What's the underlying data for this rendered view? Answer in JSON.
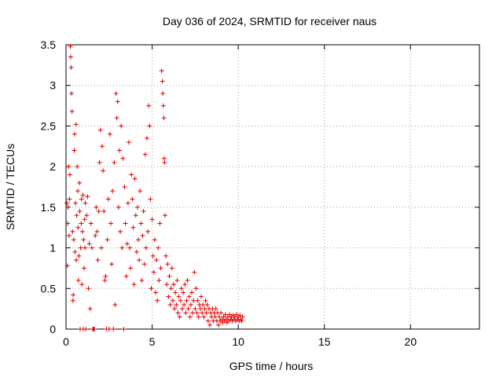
{
  "chart_data": {
    "type": "scatter",
    "title": "Day 036 of 2024, SRMTID for receiver naus",
    "xlabel": "GPS time / hours",
    "ylabel": "SRMTID / TECUs",
    "xlim": [
      0,
      24
    ],
    "ylim": [
      0,
      3.5
    ],
    "grid": true,
    "marker": "+",
    "colors": {
      "series": "#e00000",
      "axis": "#000000",
      "grid": "#a0a0a0"
    },
    "x_ticks": [
      0,
      5,
      10,
      15,
      20
    ],
    "x_tick_labels": [
      "0",
      "5",
      "10",
      "15",
      "20"
    ],
    "y_ticks": [
      0,
      0.5,
      1,
      1.5,
      2,
      2.5,
      3,
      3.5
    ],
    "y_tick_labels": [
      "0",
      "0.5",
      "1",
      "1.5",
      "2",
      "2.5",
      "3",
      "3.5"
    ],
    "series": [
      {
        "name": "SRMTID",
        "points": [
          [
            0.05,
            1.55
          ],
          [
            0.08,
            0.78
          ],
          [
            0.1,
            1.3
          ],
          [
            0.12,
            1.5
          ],
          [
            0.15,
            2.0
          ],
          [
            0.18,
            1.15
          ],
          [
            0.2,
            1.6
          ],
          [
            0.22,
            1.9
          ],
          [
            0.25,
            3.48
          ],
          [
            0.27,
            3.35
          ],
          [
            0.3,
            3.22
          ],
          [
            0.32,
            2.9
          ],
          [
            0.35,
            2.68
          ],
          [
            0.38,
            1.2
          ],
          [
            0.4,
            0.35
          ],
          [
            0.42,
            0.42
          ],
          [
            0.45,
            1.1
          ],
          [
            0.48,
            2.2
          ],
          [
            0.5,
            2.4
          ],
          [
            0.52,
            0.95
          ],
          [
            0.55,
            1.55
          ],
          [
            0.58,
            2.52
          ],
          [
            0.6,
            0.85
          ],
          [
            0.62,
            1.4
          ],
          [
            0.65,
            2.0
          ],
          [
            0.68,
            1.7
          ],
          [
            0.7,
            1.25
          ],
          [
            0.72,
            0.6
          ],
          [
            0.75,
            0.9
          ],
          [
            0.78,
            1.8
          ],
          [
            0.8,
            1.45
          ],
          [
            0.82,
            0.0
          ],
          [
            0.85,
            1.0
          ],
          [
            0.88,
            1.3
          ],
          [
            0.9,
            1.6
          ],
          [
            0.92,
            0.55
          ],
          [
            0.95,
            1.2
          ],
          [
            0.98,
            1.65
          ],
          [
            1.0,
            0.0
          ],
          [
            1.02,
            1.1
          ],
          [
            1.05,
            0.75
          ],
          [
            1.08,
            1.35
          ],
          [
            1.1,
            1.0
          ],
          [
            1.12,
            1.55
          ],
          [
            1.15,
            0.0
          ],
          [
            1.2,
            1.4
          ],
          [
            1.25,
            1.63
          ],
          [
            1.3,
            0.5
          ],
          [
            1.35,
            1.05
          ],
          [
            1.4,
            0.25
          ],
          [
            1.45,
            1.3
          ],
          [
            1.5,
            1.0
          ],
          [
            1.55,
            0.0
          ],
          [
            1.6,
            0.0
          ],
          [
            1.65,
            0.0
          ],
          [
            1.7,
            1.15
          ],
          [
            1.75,
            1.5
          ],
          [
            1.8,
            1.2
          ],
          [
            1.85,
            0.85
          ],
          [
            1.9,
            1.45
          ],
          [
            1.95,
            2.05
          ],
          [
            2.0,
            2.45
          ],
          [
            2.05,
            1.0
          ],
          [
            2.1,
            2.25
          ],
          [
            2.15,
            1.95
          ],
          [
            2.2,
            1.45
          ],
          [
            2.25,
            0.6
          ],
          [
            2.3,
            0.65
          ],
          [
            2.35,
            0.0
          ],
          [
            2.4,
            1.1
          ],
          [
            2.45,
            1.6
          ],
          [
            2.5,
            0.0
          ],
          [
            2.55,
            2.4
          ],
          [
            2.6,
            1.3
          ],
          [
            2.65,
            0.8
          ],
          [
            2.7,
            1.7
          ],
          [
            2.75,
            0.0
          ],
          [
            2.8,
            2.05
          ],
          [
            2.85,
            0.3
          ],
          [
            2.9,
            2.9
          ],
          [
            2.95,
            2.6
          ],
          [
            3.0,
            2.8
          ],
          [
            3.05,
            1.5
          ],
          [
            3.1,
            2.2
          ],
          [
            3.15,
            1.2
          ],
          [
            3.2,
            2.5
          ],
          [
            3.25,
            1.0
          ],
          [
            3.3,
            2.1
          ],
          [
            3.35,
            0.0
          ],
          [
            3.4,
            1.75
          ],
          [
            3.45,
            1.3
          ],
          [
            3.5,
            0.65
          ],
          [
            3.55,
            1.05
          ],
          [
            3.6,
            1.55
          ],
          [
            3.65,
            2.3
          ],
          [
            3.7,
            1.0
          ],
          [
            3.75,
            0.75
          ],
          [
            3.8,
            1.9
          ],
          [
            3.85,
            1.6
          ],
          [
            3.9,
            1.25
          ],
          [
            3.95,
            0.55
          ],
          [
            4.0,
            1.85
          ],
          [
            4.05,
            1.4
          ],
          [
            4.1,
            0.95
          ],
          [
            4.15,
            1.5
          ],
          [
            4.2,
            1.1
          ],
          [
            4.25,
            0.85
          ],
          [
            4.3,
            1.7
          ],
          [
            4.35,
            1.3
          ],
          [
            4.4,
            0.6
          ],
          [
            4.45,
            1.15
          ],
          [
            4.5,
            1.45
          ],
          [
            4.55,
            0.8
          ],
          [
            4.6,
            2.15
          ],
          [
            4.65,
            1.0
          ],
          [
            4.7,
            2.35
          ],
          [
            4.75,
            1.2
          ],
          [
            4.8,
            2.75
          ],
          [
            4.85,
            2.5
          ],
          [
            4.9,
            1.6
          ],
          [
            4.95,
            0.5
          ],
          [
            5.0,
            1.35
          ],
          [
            5.05,
            0.9
          ],
          [
            5.1,
            0.7
          ],
          [
            5.15,
            1.1
          ],
          [
            5.2,
            0.45
          ],
          [
            5.25,
            0.85
          ],
          [
            5.3,
            0.35
          ],
          [
            5.35,
            1.0
          ],
          [
            5.4,
            0.6
          ],
          [
            5.45,
            1.3
          ],
          [
            5.5,
            0.75
          ],
          [
            5.55,
            3.18
          ],
          [
            5.6,
            3.05
          ],
          [
            5.62,
            2.9
          ],
          [
            5.65,
            2.75
          ],
          [
            5.68,
            2.6
          ],
          [
            5.7,
            2.1
          ],
          [
            5.72,
            2.05
          ],
          [
            5.75,
            1.4
          ],
          [
            5.8,
            0.9
          ],
          [
            5.85,
            0.55
          ],
          [
            5.9,
            0.8
          ],
          [
            5.95,
            0.4
          ],
          [
            6.0,
            0.65
          ],
          [
            6.05,
            0.3
          ],
          [
            6.1,
            0.5
          ],
          [
            6.15,
            0.75
          ],
          [
            6.2,
            0.35
          ],
          [
            6.25,
            0.55
          ],
          [
            6.3,
            0.25
          ],
          [
            6.35,
            0.45
          ],
          [
            6.4,
            0.3
          ],
          [
            6.45,
            0.6
          ],
          [
            6.5,
            0.2
          ],
          [
            6.55,
            0.4
          ],
          [
            6.6,
            0.15
          ],
          [
            6.65,
            0.35
          ],
          [
            6.7,
            0.5
          ],
          [
            6.75,
            0.25
          ],
          [
            6.8,
            0.45
          ],
          [
            6.85,
            0.3
          ],
          [
            6.9,
            0.55
          ],
          [
            6.95,
            0.2
          ],
          [
            7.0,
            0.35
          ],
          [
            7.05,
            0.6
          ],
          [
            7.1,
            0.25
          ],
          [
            7.15,
            0.4
          ],
          [
            7.2,
            0.15
          ],
          [
            7.25,
            0.3
          ],
          [
            7.3,
            0.45
          ],
          [
            7.35,
            0.2
          ],
          [
            7.4,
            0.35
          ],
          [
            7.45,
            0.7
          ],
          [
            7.5,
            0.25
          ],
          [
            7.55,
            0.5
          ],
          [
            7.6,
            0.2
          ],
          [
            7.65,
            0.35
          ],
          [
            7.7,
            0.15
          ],
          [
            7.75,
            0.3
          ],
          [
            7.8,
            0.25
          ],
          [
            7.85,
            0.4
          ],
          [
            7.9,
            0.2
          ],
          [
            7.95,
            0.3
          ],
          [
            8.0,
            0.15
          ],
          [
            8.05,
            0.25
          ],
          [
            8.1,
            0.35
          ],
          [
            8.15,
            0.2
          ],
          [
            8.2,
            0.3
          ],
          [
            8.25,
            0.1
          ],
          [
            8.3,
            0.25
          ],
          [
            8.35,
            0.05
          ],
          [
            8.4,
            0.2
          ],
          [
            8.45,
            0.15
          ],
          [
            8.5,
            0.25
          ],
          [
            8.55,
            0.1
          ],
          [
            8.6,
            0.2
          ],
          [
            8.65,
            0.15
          ],
          [
            8.7,
            0.25
          ],
          [
            8.75,
            0.1
          ],
          [
            8.8,
            0.2
          ],
          [
            8.85,
            0.05
          ],
          [
            8.9,
            0.15
          ],
          [
            8.95,
            0.1
          ],
          [
            9.0,
            0.2
          ],
          [
            9.05,
            0.12
          ],
          [
            9.1,
            0.08
          ],
          [
            9.15,
            0.15
          ],
          [
            9.2,
            0.1
          ],
          [
            9.25,
            0.18
          ],
          [
            9.3,
            0.12
          ],
          [
            9.35,
            0.08
          ],
          [
            9.4,
            0.15
          ],
          [
            9.45,
            0.1
          ],
          [
            9.5,
            0.18
          ],
          [
            9.55,
            0.12
          ],
          [
            9.6,
            0.15
          ],
          [
            9.65,
            0.1
          ],
          [
            9.7,
            0.17
          ],
          [
            9.75,
            0.12
          ],
          [
            9.8,
            0.15
          ],
          [
            9.85,
            0.1
          ],
          [
            9.9,
            0.18
          ],
          [
            9.95,
            0.12
          ],
          [
            10.0,
            0.15
          ],
          [
            10.05,
            0.1
          ],
          [
            10.1,
            0.17
          ],
          [
            10.15,
            0.12
          ],
          [
            10.2,
            0.1
          ],
          [
            10.25,
            0.15
          ]
        ]
      }
    ]
  }
}
